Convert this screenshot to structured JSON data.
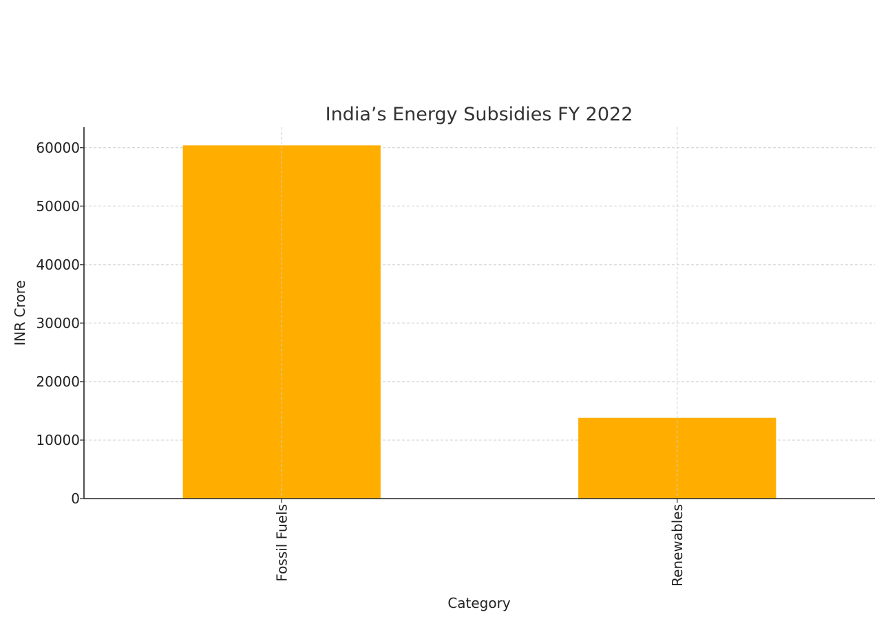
{
  "chart_data": {
    "type": "bar",
    "title": "India’s Energy Subsidies FY 2022",
    "xlabel": "Category",
    "ylabel": "INR Crore",
    "categories": [
      "Fossil Fuels",
      "Renewables"
    ],
    "values": [
      60400,
      13800
    ],
    "ylim": [
      0,
      63500
    ],
    "yticks": [
      0,
      10000,
      20000,
      30000,
      40000,
      50000,
      60000
    ],
    "grid": true,
    "colors": {
      "bar": "#FFAE00"
    }
  }
}
